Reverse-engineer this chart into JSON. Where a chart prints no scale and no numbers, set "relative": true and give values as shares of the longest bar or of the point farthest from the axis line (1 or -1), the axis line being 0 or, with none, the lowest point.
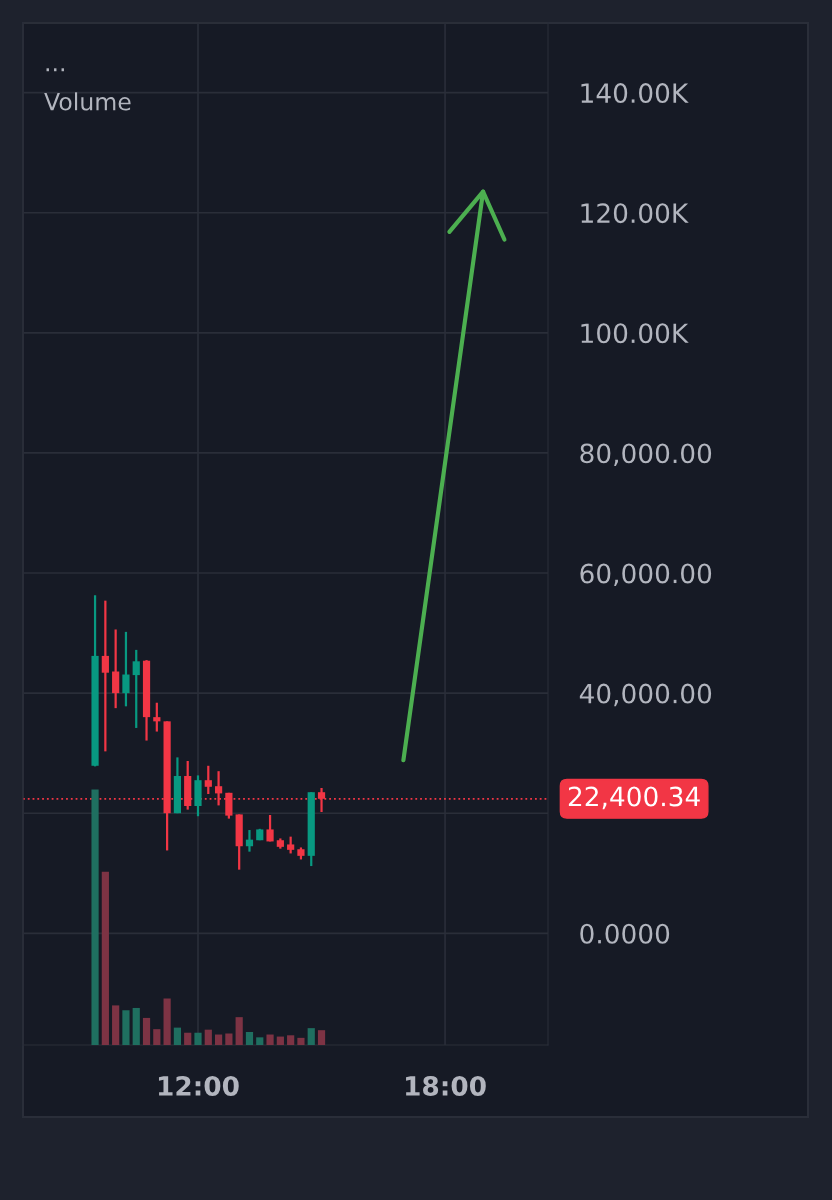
{
  "chart_data": [
    {
      "type": "candlestick",
      "annotations": [
        "..."
      ],
      "x": [
        9.5,
        9.75,
        10.0,
        10.25,
        10.5,
        10.75,
        11.0,
        11.25,
        11.5,
        11.75,
        12.0,
        12.25,
        12.5,
        12.75,
        13.0,
        13.25,
        13.5,
        13.75,
        14.0,
        14.25,
        14.5,
        14.75,
        15.0
      ],
      "ohlc": [
        [
          27900,
          56300,
          27800,
          46200
        ],
        [
          46200,
          55400,
          30300,
          43400
        ],
        [
          43600,
          50600,
          37500,
          40000
        ],
        [
          40000,
          50200,
          37800,
          43100
        ],
        [
          43000,
          47200,
          34200,
          45300
        ],
        [
          45400,
          45500,
          32100,
          36000
        ],
        [
          36000,
          38400,
          33600,
          35300
        ],
        [
          35300,
          35300,
          13800,
          20000
        ],
        [
          20000,
          29300,
          20000,
          26200
        ],
        [
          26200,
          28700,
          20600,
          21200
        ],
        [
          21200,
          26300,
          19500,
          25500
        ],
        [
          25500,
          27900,
          23200,
          24400
        ],
        [
          24500,
          27000,
          21300,
          23300
        ],
        [
          23400,
          23400,
          19100,
          19600
        ],
        [
          19800,
          19800,
          10600,
          14500
        ],
        [
          14500,
          17200,
          13600,
          15600
        ],
        [
          15500,
          17400,
          15500,
          17300
        ],
        [
          17300,
          19700,
          15300,
          15300
        ],
        [
          15500,
          15800,
          14100,
          14400
        ],
        [
          14800,
          16100,
          13300,
          13900
        ],
        [
          14000,
          14300,
          12300,
          12900
        ],
        [
          12900,
          23500,
          11200,
          23500
        ],
        [
          23500,
          24200,
          20200,
          22400
        ]
      ],
      "colors": [
        "#089981",
        "#f23645",
        "#f23645",
        "#089981",
        "#089981",
        "#f23645",
        "#f23645",
        "#f23645",
        "#089981",
        "#f23645",
        "#089981",
        "#f23645",
        "#f23645",
        "#f23645",
        "#f23645",
        "#089981",
        "#089981",
        "#f23645",
        "#f23645",
        "#f23645",
        "#f23645",
        "#089981",
        "#f23645"
      ],
      "xlim": [
        7.75,
        20.5
      ],
      "ylim": [
        -18600,
        151600
      ],
      "xticks": [
        {
          "value": 12,
          "label": "12:00"
        },
        {
          "value": 18,
          "label": "18:00"
        }
      ],
      "yticks": [
        {
          "value": 0,
          "label": "0.0000"
        },
        {
          "value": 20000,
          "label": null
        },
        {
          "value": 40000,
          "label": "40,000.00"
        },
        {
          "value": 60000,
          "label": "60,000.00"
        },
        {
          "value": 80000,
          "label": "80,000.00"
        },
        {
          "value": 100000,
          "label": "100.00K"
        },
        {
          "value": 120000,
          "label": "120.00K"
        },
        {
          "value": 140000,
          "label": "140.00K"
        }
      ],
      "ref_lines": [
        {
          "axis": "y",
          "value": 22400.34,
          "label": "22,400.34",
          "color": "#f23645",
          "line_style": "dotted"
        }
      ],
      "grid": true
    },
    {
      "type": "bar",
      "title": "Volume",
      "relative": true,
      "tick_labels": false,
      "x": [
        9.5,
        9.75,
        10.0,
        10.25,
        10.5,
        10.75,
        11.0,
        11.25,
        11.5,
        11.75,
        12.0,
        12.25,
        12.5,
        12.75,
        13.0,
        13.25,
        13.5,
        13.75,
        14.0,
        14.25,
        14.5,
        14.75,
        15.0
      ],
      "xlim": [
        7.75,
        20.5
      ],
      "values": [
        1,
        0.678,
        0.155,
        0.136,
        0.145,
        0.106,
        0.062,
        0.182,
        0.068,
        0.048,
        0.048,
        0.06,
        0.041,
        0.045,
        0.109,
        0.051,
        0.03,
        0.041,
        0.033,
        0.038,
        0.028,
        0.066,
        0.058
      ],
      "colors": [
        "#1f6f60",
        "#7d3344",
        "#7d3344",
        "#1f6f60",
        "#1f6f60",
        "#7d3344",
        "#7d3344",
        "#7d3344",
        "#1f6f60",
        "#7d3344",
        "#1f6f60",
        "#7d3344",
        "#7d3344",
        "#7d3344",
        "#7d3344",
        "#1f6f60",
        "#1f6f60",
        "#7d3344",
        "#7d3344",
        "#7d3344",
        "#7d3344",
        "#1f6f60",
        "#7d3344"
      ]
    }
  ]
}
